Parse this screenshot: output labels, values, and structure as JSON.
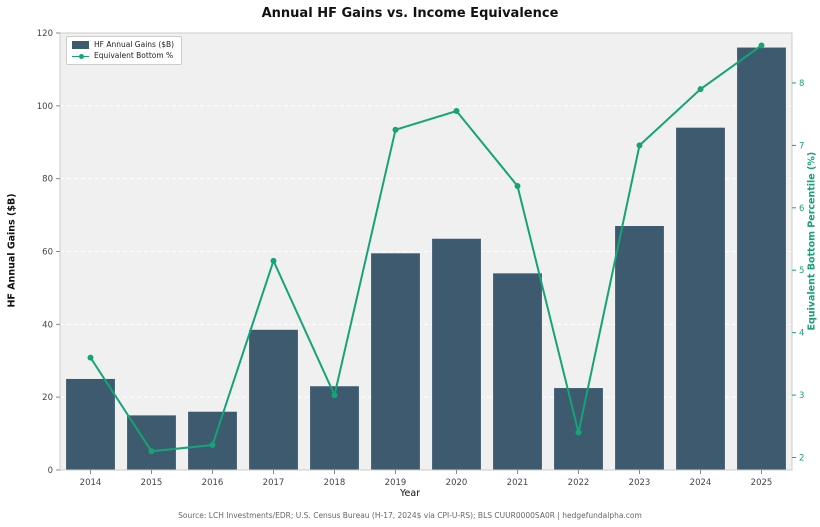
{
  "title": "Annual HF Gains vs. Income Equivalence",
  "footer": "Source: LCH Investments/EDR; U.S. Census Bureau (H-17, 2024$ via CPI-U-RS); BLS CUUR0000SA0R | hedgefundalpha.com",
  "colors": {
    "bar": "#3d5a6e",
    "line": "#16a378",
    "plot_bg": "#f0f0f0",
    "grid": "#ffffff",
    "tick_text": "#444444",
    "spine": "#cccccc"
  },
  "chart_data": {
    "type": "bar",
    "subtype": "bar+line dual axis",
    "title": "Annual HF Gains vs. Income Equivalence",
    "xlabel": "Year",
    "ylabel_left": "HF Annual Gains ($B)",
    "ylabel_right": "Equivalent Bottom Percentile (%)",
    "categories": [
      "2014",
      "2015",
      "2016",
      "2017",
      "2018",
      "2019",
      "2020",
      "2021",
      "2022",
      "2023",
      "2024",
      "2025"
    ],
    "series": [
      {
        "name": "HF Annual Gains ($B)",
        "type": "bar",
        "axis": "left",
        "values": [
          25,
          15,
          16,
          38.5,
          23,
          59.5,
          63.5,
          54,
          22.5,
          67,
          94,
          116
        ]
      },
      {
        "name": "Equivalent Bottom %",
        "type": "line",
        "axis": "right",
        "values": [
          3.6,
          2.1,
          2.2,
          5.15,
          3.0,
          7.25,
          7.55,
          6.35,
          2.4,
          7.0,
          7.9,
          8.6
        ]
      }
    ],
    "ylim_left": [
      0,
      120
    ],
    "yticks_left": [
      0,
      20,
      40,
      60,
      80,
      100,
      120
    ],
    "ylim_right": [
      1.8,
      8.8
    ],
    "yticks_right": [
      2,
      3,
      4,
      5,
      6,
      7,
      8
    ],
    "grid": true,
    "legend_position": "upper-left"
  }
}
